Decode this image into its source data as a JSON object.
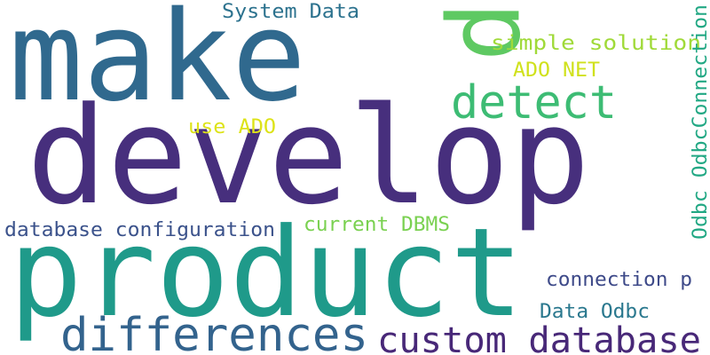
{
  "words": [
    "make",
    "p",
    "develop",
    "product",
    "differences",
    "custom database",
    "detect",
    "System Data",
    "simple solution",
    "ADO NET",
    "use ADO",
    "database configuration",
    "current DBMS",
    "Odbc OdbcConnection",
    "connection p",
    "Data Odbc"
  ]
}
